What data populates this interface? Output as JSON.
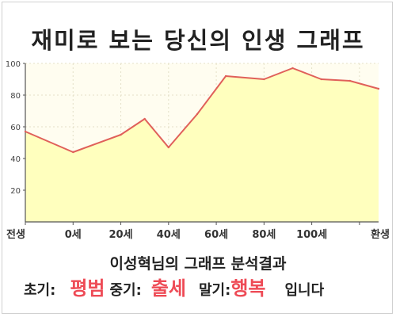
{
  "title": "재미로 보는 당신의 인생 그래프",
  "summary_title": "이성혁님의 그래프 분석결과",
  "results": {
    "early_label": "초기:",
    "early_value": "평범",
    "middle_label": "중기:",
    "middle_value": "출세",
    "late_label": "말기:",
    "late_value": "행복",
    "ending": "입니다"
  },
  "colors": {
    "line": "#e0605a",
    "fill": "#ffffbe",
    "plot_background": "#fffdf0",
    "highlight_text": "#ee4b56"
  },
  "chart_data": {
    "type": "area",
    "x": [
      0,
      10,
      20,
      25,
      30,
      36,
      42,
      50,
      56,
      62,
      68,
      74
    ],
    "values": [
      57,
      44,
      55,
      65,
      47,
      68,
      92,
      90,
      97,
      90,
      89,
      84
    ],
    "x_ticks": [
      {
        "x": 0,
        "label": "전생"
      },
      {
        "x": 10,
        "label": "0세"
      },
      {
        "x": 20,
        "label": "20세"
      },
      {
        "x": 30,
        "label": "40세"
      },
      {
        "x": 40,
        "label": "60세"
      },
      {
        "x": 50,
        "label": "80세"
      },
      {
        "x": 60,
        "label": "100세"
      },
      {
        "x": 70,
        "label": "환생"
      }
    ],
    "y_ticks": [
      20,
      40,
      60,
      80,
      100
    ],
    "xlim": [
      0,
      74
    ],
    "ylim": [
      0,
      100
    ],
    "grid": true,
    "legend": "none"
  }
}
